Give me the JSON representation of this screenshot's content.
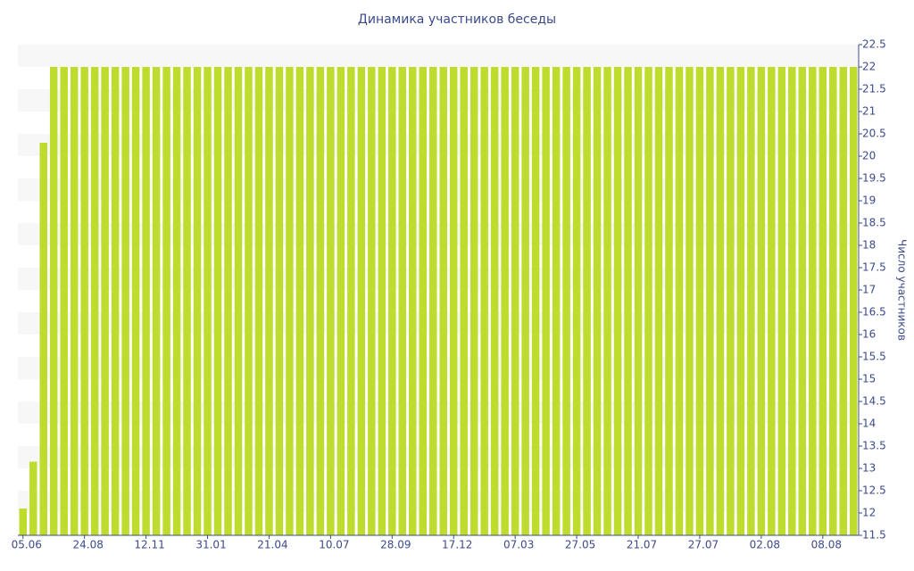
{
  "chart_data": {
    "type": "bar",
    "title": "Динамика участников беседы",
    "y_axis_label": "Число участников",
    "categories": [
      "05.06",
      null,
      null,
      null,
      null,
      null,
      "24.08",
      null,
      null,
      null,
      null,
      null,
      "12.11",
      null,
      null,
      null,
      null,
      null,
      "31.01",
      null,
      null,
      null,
      null,
      null,
      "21.04",
      null,
      null,
      null,
      null,
      null,
      "10.07",
      null,
      null,
      null,
      null,
      null,
      "28.09",
      null,
      null,
      null,
      null,
      null,
      "17.12",
      null,
      null,
      null,
      null,
      null,
      "07.03",
      null,
      null,
      null,
      null,
      null,
      "27.05",
      null,
      null,
      null,
      null,
      null,
      "21.07",
      null,
      null,
      null,
      null,
      null,
      "27.07",
      null,
      null,
      null,
      null,
      null,
      "02.08",
      null,
      null,
      null,
      null,
      null,
      "08.08",
      null,
      null,
      null
    ],
    "values": [
      12.1,
      13.15,
      20.3,
      22,
      22,
      22,
      22,
      22,
      22,
      22,
      22,
      22,
      22,
      22,
      22,
      22,
      22,
      22,
      22,
      22,
      22,
      22,
      22,
      22,
      22,
      22,
      22,
      22,
      22,
      22,
      22,
      22,
      22,
      22,
      22,
      22,
      22,
      22,
      22,
      22,
      22,
      22,
      22,
      22,
      22,
      22,
      22,
      22,
      22,
      22,
      22,
      22,
      22,
      22,
      22,
      22,
      22,
      22,
      22,
      22,
      22,
      22,
      22,
      22,
      22,
      22,
      22,
      22,
      22,
      22,
      22,
      22,
      22,
      22,
      22,
      22,
      22,
      22,
      22,
      22,
      22,
      22
    ],
    "color": "#bedc2e",
    "ylim": [
      11.5,
      22.5
    ],
    "yticks": [
      11.5,
      12,
      12.5,
      13,
      13.5,
      14,
      14.5,
      15,
      15.5,
      16,
      16.5,
      17,
      17.5,
      18,
      18.5,
      19,
      19.5,
      20,
      20.5,
      21,
      21.5,
      22,
      22.5
    ],
    "y_axis_side": "right",
    "banded_background": true
  }
}
